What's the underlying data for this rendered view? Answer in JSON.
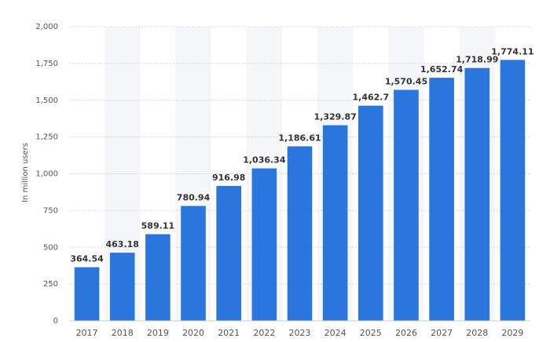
{
  "chart_data": {
    "type": "bar",
    "y_axis_label": "In million users",
    "categories": [
      "2017",
      "2018",
      "2019",
      "2020",
      "2021",
      "2022",
      "2023",
      "2024",
      "2025",
      "2026",
      "2027",
      "2028",
      "2029"
    ],
    "values": [
      364.54,
      463.18,
      589.11,
      780.94,
      916.98,
      1036.34,
      1186.61,
      1329.87,
      1462.7,
      1570.45,
      1652.74,
      1718.99,
      1774.11
    ],
    "value_labels": [
      "364.54",
      "463.18",
      "589.11",
      "780.94",
      "916.98",
      "1,036.34",
      "1,186.61",
      "1,329.87",
      "1,462.7",
      "1,570.45",
      "1,652.74",
      "1,718.99",
      "1,774.11"
    ],
    "color": "#2a76dd",
    "ylim": [
      0,
      2000
    ],
    "yticks": [
      0,
      250,
      500,
      750,
      {
        "value": 1000,
        "label": "1,000"
      },
      {
        "value": 1250,
        "label": "1,250"
      },
      {
        "value": 1500,
        "label": "1,500"
      },
      {
        "value": 1750,
        "label": "1,750"
      },
      {
        "value": 2000,
        "label": "2,000"
      }
    ],
    "grid": true
  }
}
